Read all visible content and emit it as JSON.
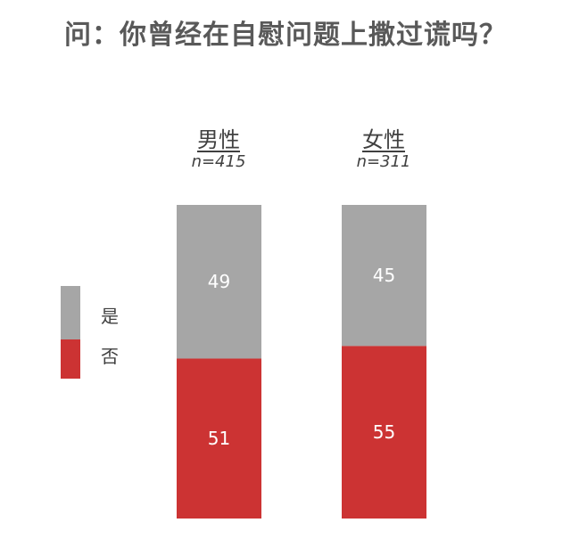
{
  "chart_data": {
    "type": "bar",
    "stacked": true,
    "percent": true,
    "title": "问：你曾经在自慰问题上撒过谎吗？",
    "categories": [
      "男性",
      "女性"
    ],
    "category_n": [
      "n=415",
      "n=311"
    ],
    "series": [
      {
        "name": "是",
        "values": [
          49,
          45
        ],
        "color": "#a6a6a6"
      },
      {
        "name": "否",
        "values": [
          51,
          55
        ],
        "color": "#cc3333"
      }
    ],
    "ylim": [
      0,
      100
    ],
    "legend": "left"
  }
}
